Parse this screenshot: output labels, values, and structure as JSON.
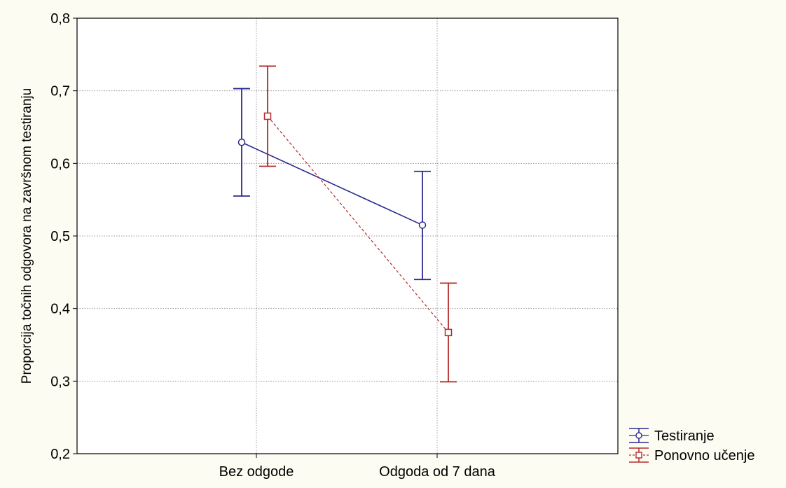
{
  "chart_data": {
    "type": "line",
    "title": "",
    "xlabel": "",
    "ylabel": "Proporcija točnih odgovora na završnom testiranju",
    "categories": [
      "Bez odgode",
      "Odgoda od 7 dana"
    ],
    "ylim": [
      0.2,
      0.8
    ],
    "yticks": [
      {
        "value": 0.2,
        "label": "0,2"
      },
      {
        "value": 0.3,
        "label": "0,3"
      },
      {
        "value": 0.4,
        "label": "0,4"
      },
      {
        "value": 0.5,
        "label": "0,5"
      },
      {
        "value": 0.6,
        "label": "0,6"
      },
      {
        "value": 0.7,
        "label": "0,7"
      },
      {
        "value": 0.8,
        "label": "0,8"
      }
    ],
    "grid": true,
    "legend_position": "bottom-right outside",
    "error_bars": true,
    "series": [
      {
        "name": "Testiranje",
        "color": "#2b2b8f",
        "marker": "circle",
        "line_style": "solid",
        "values": [
          0.629,
          0.515
        ],
        "ci_low": [
          0.555,
          0.44
        ],
        "ci_high": [
          0.703,
          0.589
        ]
      },
      {
        "name": "Ponovno učenje",
        "color": "#b52a2a",
        "marker": "square",
        "line_style": "dashed",
        "values": [
          0.665,
          0.367
        ],
        "ci_low": [
          0.596,
          0.299
        ],
        "ci_high": [
          0.734,
          0.435
        ]
      }
    ]
  }
}
